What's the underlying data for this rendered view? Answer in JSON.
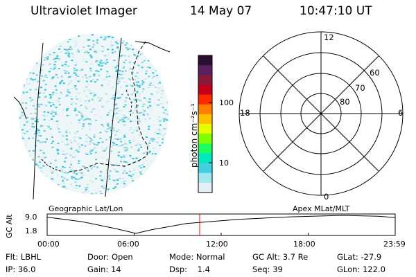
{
  "header": {
    "instrument": "Ultraviolet Imager",
    "date": "14 May 07",
    "time": "10:47:10 UT"
  },
  "colorbar": {
    "units_label": "photon cm⁻²s⁻¹",
    "ticks": [
      "100",
      "10"
    ],
    "colors": [
      "#2b0f2e",
      "#5a1f5e",
      "#8a1a3a",
      "#c00018",
      "#ff2a00",
      "#ff8000",
      "#ffc000",
      "#e6ff00",
      "#80ff00",
      "#20ff60",
      "#00e8c0",
      "#40d0e0",
      "#a0e8f0",
      "#e0f0f4"
    ]
  },
  "polar_plot": {
    "mlt_labels": {
      "top": "12",
      "left": "18",
      "right": "6",
      "bottom": "0"
    },
    "lat_labels": [
      "60",
      "70",
      "80"
    ]
  },
  "timeline": {
    "left_label": "Geographic Lat/Lon",
    "right_label": "Apex MLat/MLT",
    "axis_title": "GC Alt",
    "y_ticks": [
      "9.0",
      "1.8"
    ],
    "x_ticks": [
      "00:00",
      "06:00",
      "12:00",
      "18:00",
      "23:59"
    ],
    "current_marker_color": "#ff0000"
  },
  "info": {
    "row1": [
      {
        "label": "Flt:",
        "value": "LBHL"
      },
      {
        "label": "Door:",
        "value": "Open"
      },
      {
        "label": "Mode:",
        "value": "Normal"
      },
      {
        "label": "GC Alt:",
        "value": "3.7 Re"
      },
      {
        "label": "GLat:",
        "value": "-27.9"
      }
    ],
    "row2": [
      {
        "label": "IP:",
        "value": "36.0"
      },
      {
        "label": "Gain:",
        "value": "14"
      },
      {
        "label": "Dsp:",
        "value": "1.4"
      },
      {
        "label": "Seq:",
        "value": "39"
      },
      {
        "label": "GLon:",
        "value": "122.0"
      }
    ]
  }
}
